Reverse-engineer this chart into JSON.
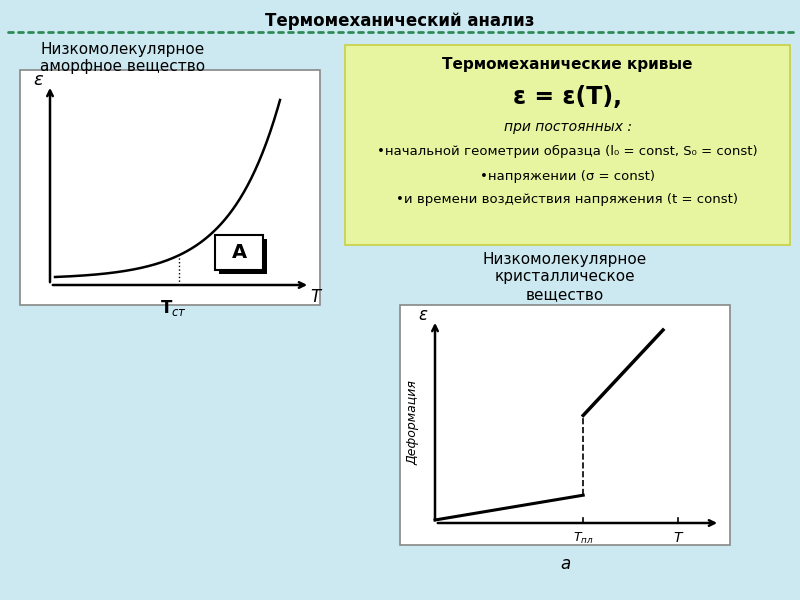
{
  "title": "Термомеханический анализ",
  "title_fontsize": 12,
  "bg_color": "#cce8f0",
  "dot_line_color": "#2e8b57",
  "left_box_label": "Низкомолекулярное\nаморфное вещество",
  "right_box_bg": "#e8f5a0",
  "right_box_title": "Термомеханические кривые",
  "right_box_formula": "ε = ε(T),",
  "right_box_line1": "при постоянных :",
  "right_box_line2": "•начальной геометрии образца (l₀ = const, S₀ = const)",
  "right_box_line3": "•напряжении (σ = const)",
  "right_box_line4": "•и времени воздействия напряжения (t = const)",
  "bottom_right_label": "Низкомолекулярное\nкристаллическое\nвещество",
  "bottom_a_label": "а"
}
